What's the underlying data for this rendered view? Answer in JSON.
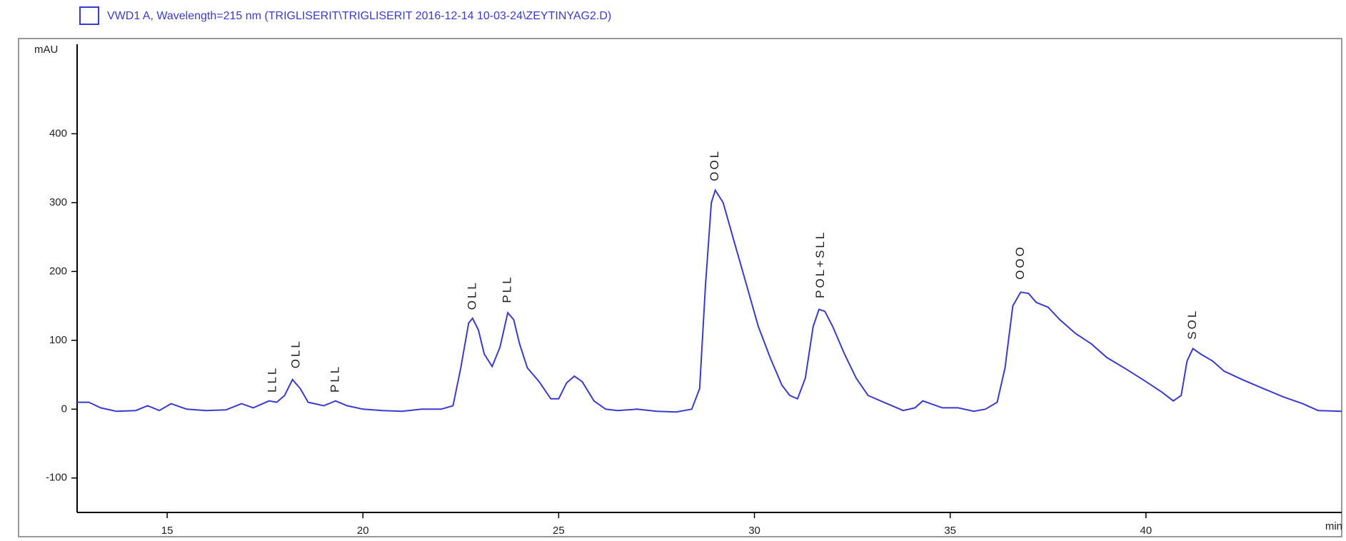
{
  "chart_data": {
    "type": "line",
    "legend_text": "VWD1 A, Wavelength=215 nm (TRIGLISERIT\\TRIGLISERIT 2016-12-14 10-03-24\\ZEYTINYAG2.D)",
    "y_label": "mAU",
    "x_label": "min",
    "xlim": [
      12.7,
      45
    ],
    "ylim": [
      -150,
      530
    ],
    "xticks": [
      15,
      20,
      25,
      30,
      35,
      40
    ],
    "yticks": [
      -100,
      0,
      100,
      200,
      300,
      400
    ],
    "series": [
      {
        "name": "VWD1 A",
        "color": "#3a3ad0",
        "x": [
          12.7,
          13.0,
          13.3,
          13.7,
          14.2,
          14.5,
          14.8,
          15.1,
          15.5,
          16.0,
          16.5,
          16.9,
          17.2,
          17.6,
          17.8,
          18.0,
          18.2,
          18.4,
          18.6,
          19.0,
          19.3,
          19.6,
          20.0,
          20.5,
          21.0,
          21.5,
          22.0,
          22.3,
          22.5,
          22.7,
          22.8,
          22.95,
          23.1,
          23.3,
          23.5,
          23.7,
          23.85,
          24.0,
          24.2,
          24.5,
          24.8,
          25.0,
          25.2,
          25.4,
          25.6,
          25.9,
          26.2,
          26.5,
          27.0,
          27.5,
          28.0,
          28.4,
          28.6,
          28.75,
          28.9,
          29.0,
          29.2,
          29.5,
          29.8,
          30.1,
          30.4,
          30.7,
          30.9,
          31.1,
          31.3,
          31.5,
          31.65,
          31.8,
          32.0,
          32.3,
          32.6,
          32.9,
          33.3,
          33.8,
          34.1,
          34.3,
          34.5,
          34.8,
          35.2,
          35.6,
          35.9,
          36.2,
          36.4,
          36.6,
          36.8,
          37.0,
          37.2,
          37.5,
          37.8,
          38.2,
          38.6,
          39.0,
          39.5,
          40.0,
          40.4,
          40.7,
          40.9,
          41.05,
          41.2,
          41.4,
          41.7,
          42.0,
          42.5,
          43.0,
          43.5,
          44.0,
          44.4,
          45.0
        ],
        "values": [
          10,
          10,
          2,
          -3,
          -2,
          5,
          -2,
          8,
          0,
          -2,
          -1,
          8,
          2,
          12,
          10,
          20,
          43,
          30,
          10,
          5,
          12,
          5,
          0,
          -2,
          -3,
          0,
          0,
          5,
          60,
          125,
          132,
          115,
          80,
          62,
          90,
          140,
          130,
          95,
          60,
          40,
          15,
          15,
          38,
          48,
          40,
          12,
          0,
          -2,
          0,
          -3,
          -4,
          0,
          30,
          180,
          300,
          318,
          300,
          240,
          180,
          120,
          75,
          35,
          20,
          15,
          45,
          120,
          145,
          142,
          120,
          80,
          45,
          20,
          10,
          -2,
          2,
          12,
          8,
          2,
          2,
          -3,
          0,
          10,
          60,
          150,
          170,
          168,
          155,
          148,
          130,
          110,
          95,
          75,
          58,
          40,
          25,
          12,
          20,
          70,
          88,
          80,
          70,
          55,
          42,
          30,
          18,
          8,
          -2,
          -3
        ]
      }
    ],
    "annotations": [
      {
        "text": "LLL",
        "x": 17.7,
        "y": 20
      },
      {
        "text": "OLL",
        "x": 18.3,
        "y": 55
      },
      {
        "text": "PLL",
        "x": 19.3,
        "y": 20
      },
      {
        "text": "OLL",
        "x": 22.8,
        "y": 140
      },
      {
        "text": "PLL",
        "x": 23.7,
        "y": 150
      },
      {
        "text": "OOL",
        "x": 29.0,
        "y": 327
      },
      {
        "text": "POL+SLL",
        "x": 31.7,
        "y": 157
      },
      {
        "text": "OOO",
        "x": 36.8,
        "y": 184
      },
      {
        "text": "SOL",
        "x": 41.2,
        "y": 97
      }
    ]
  }
}
